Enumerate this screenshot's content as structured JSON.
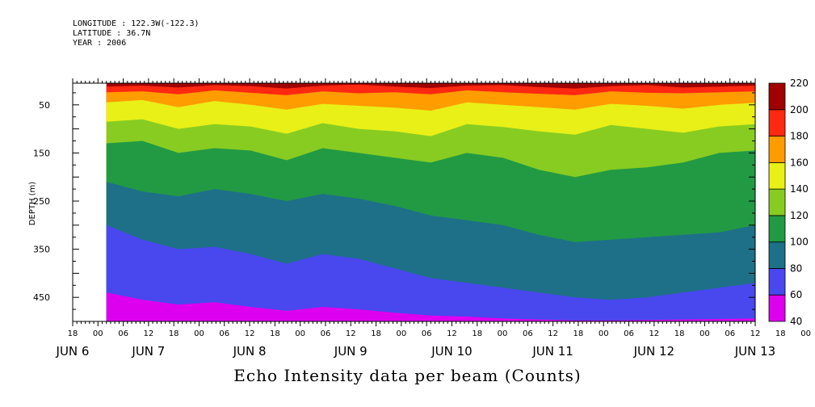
{
  "header": {
    "longitude": "LONGITUDE : 122.3W(-122.3)",
    "latitude": "LATITUDE : 36.7N",
    "year": "YEAR : 2006"
  },
  "chart_data": {
    "type": "heatmap",
    "title": "Echo Intensity data per beam (Counts)",
    "ylabel": "DEPTH (m)",
    "xlabel": "",
    "ylim": [
      500,
      5
    ],
    "yticks": [
      50,
      150,
      250,
      350,
      450
    ],
    "data_x_range_hours": [
      2,
      156
    ],
    "x_tick_labels": [
      "18",
      "00",
      "06",
      "12",
      "18",
      "00",
      "06",
      "12",
      "18",
      "00",
      "06",
      "12",
      "18",
      "00",
      "06",
      "12",
      "18",
      "00",
      "06",
      "12",
      "18",
      "00",
      "06",
      "12",
      "18",
      "00",
      "06",
      "12",
      "18",
      "00",
      "06",
      "12",
      "18"
    ],
    "day_labels": [
      "JUN 6",
      "JUN 7",
      "JUN 8",
      "JUN 9",
      "JUN 10",
      "JUN 11",
      "JUN 12",
      "JUN 13"
    ],
    "day_label_hours": [
      -6,
      12,
      36,
      60,
      84,
      108,
      132,
      156
    ],
    "colorbar": {
      "levels": [
        40,
        60,
        80,
        100,
        120,
        140,
        160,
        180,
        200,
        220
      ],
      "colors": [
        "#dd00ee",
        "#4848ee",
        "#1e7088",
        "#229a44",
        "#88cc22",
        "#e8f018",
        "#ff9c00",
        "#ff2810",
        "#a00000"
      ]
    },
    "layer_boundaries": [
      {
        "value": 200,
        "depth_m": [
          12,
          10,
          14,
          9,
          11,
          16,
          10,
          8,
          12,
          15,
          10,
          9,
          13,
          16,
          11,
          9,
          14,
          12,
          10
        ]
      },
      {
        "value": 180,
        "depth_m": [
          24,
          22,
          28,
          20,
          25,
          30,
          22,
          26,
          24,
          28,
          20,
          24,
          27,
          30,
          22,
          25,
          26,
          24,
          22
        ]
      },
      {
        "value": 160,
        "depth_m": [
          45,
          40,
          55,
          42,
          50,
          60,
          48,
          52,
          56,
          62,
          45,
          50,
          55,
          60,
          48,
          52,
          58,
          50,
          46
        ]
      },
      {
        "value": 140,
        "depth_m": [
          85,
          80,
          100,
          90,
          95,
          110,
          88,
          100,
          105,
          115,
          90,
          96,
          105,
          112,
          92,
          100,
          108,
          95,
          90
        ]
      },
      {
        "value": 120,
        "depth_m": [
          130,
          125,
          150,
          140,
          145,
          165,
          140,
          150,
          160,
          170,
          150,
          160,
          185,
          200,
          185,
          180,
          170,
          150,
          145
        ]
      },
      {
        "value": 100,
        "depth_m": [
          210,
          230,
          240,
          225,
          235,
          250,
          235,
          245,
          260,
          280,
          290,
          300,
          320,
          335,
          330,
          325,
          320,
          315,
          300
        ]
      },
      {
        "value": 80,
        "depth_m": [
          300,
          330,
          350,
          345,
          360,
          380,
          360,
          370,
          390,
          410,
          420,
          430,
          440,
          450,
          455,
          450,
          440,
          430,
          420
        ]
      },
      {
        "value": 60,
        "depth_m": [
          440,
          455,
          465,
          460,
          470,
          478,
          470,
          475,
          482,
          488,
          490,
          494,
          496,
          498,
          498,
          497,
          496,
          495,
          494
        ]
      }
    ]
  }
}
